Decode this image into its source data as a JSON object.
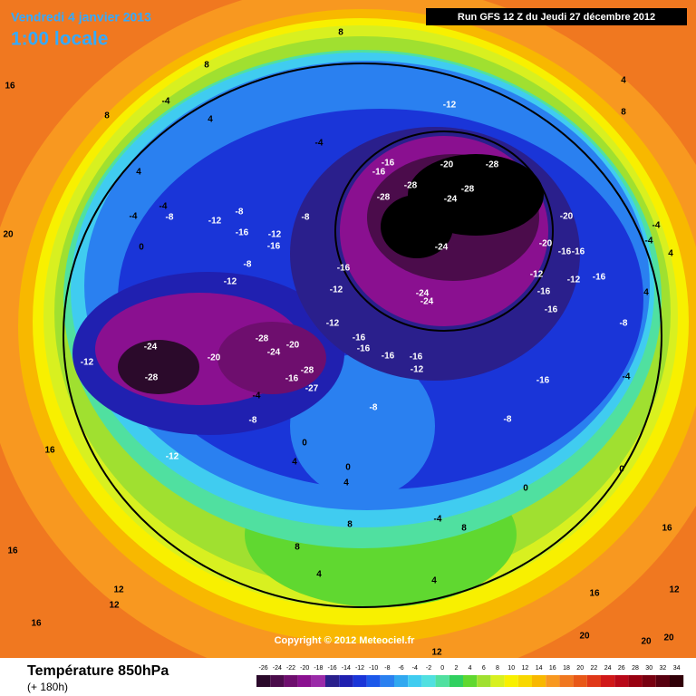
{
  "header": {
    "date": "Vendredi 4 janvier 2013",
    "time": "1:00 locale",
    "run": "Run GFS 12 Z du Jeudi 27 décembre 2012"
  },
  "copyright": "Copyright © 2012 Meteociel.fr",
  "footer": {
    "title": "Température 850hPa",
    "subtitle": "(+ 180h)"
  },
  "legend": {
    "labels": [
      -26,
      -24,
      -22,
      -20,
      -18,
      -16,
      -14,
      -12,
      -10,
      -8,
      -6,
      -4,
      -2,
      0,
      2,
      4,
      6,
      8,
      10,
      12,
      14,
      16,
      18,
      20,
      22,
      24,
      26,
      28,
      30,
      32,
      34
    ],
    "colors": [
      "#2b0a2b",
      "#4b0c4b",
      "#6e0e6e",
      "#8a1090",
      "#9a2aa8",
      "#2a1f8c",
      "#2020b0",
      "#1a35d8",
      "#1c58ea",
      "#2a80f0",
      "#30a8f0",
      "#40ccf0",
      "#50e0e0",
      "#50e0a0",
      "#30d060",
      "#60d830",
      "#a0e030",
      "#d8f020",
      "#f8f000",
      "#f8d800",
      "#f8b800",
      "#f89820",
      "#f07820",
      "#e85818",
      "#e03818",
      "#d01818",
      "#b80818",
      "#980010",
      "#780010",
      "#580010",
      "#300008"
    ]
  },
  "contour_labels": [
    -28,
    -28,
    -28,
    -24,
    -28,
    -20,
    -16,
    -16,
    -24,
    -24,
    -24,
    -20,
    -20,
    -16,
    -16,
    -16,
    -12,
    -12,
    -16,
    -16,
    -16,
    -12,
    -16,
    -12,
    -12,
    -16,
    -16,
    -16,
    -16,
    -12,
    -8,
    -8,
    -24,
    -28,
    -20,
    -28,
    -24,
    -20,
    -28,
    -16,
    -27,
    -12,
    -12,
    -8,
    -4,
    -4,
    -8,
    -12,
    -8,
    -16,
    -12,
    -16,
    -8,
    -12,
    -8,
    -4,
    -4,
    0,
    4,
    8,
    8,
    8,
    4,
    -4,
    -8,
    -4,
    -4,
    -4,
    4,
    0,
    0,
    -4,
    4,
    0,
    0,
    4,
    8,
    8,
    4,
    8,
    4,
    12,
    12,
    16,
    16,
    16,
    20,
    16,
    12,
    16,
    20,
    20,
    20,
    12,
    16,
    4,
    4,
    8
  ]
}
